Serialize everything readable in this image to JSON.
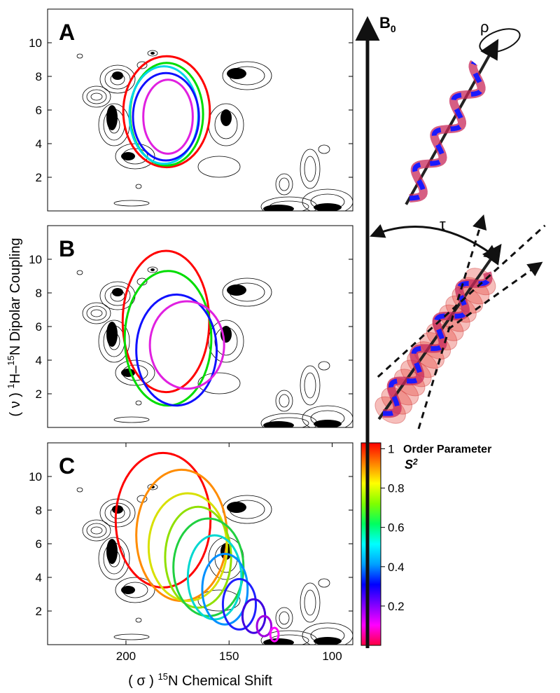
{
  "figure": {
    "xlabel": [
      "( σ ) ",
      "15",
      "N Chemical Shift"
    ],
    "ylabel": [
      "( ν ) ",
      "1",
      "H–",
      "15",
      "N Dipolar Coupling"
    ]
  },
  "chart_data": [
    {
      "type": "pisa",
      "label": "A",
      "xlim": [
        238,
        90
      ],
      "ylim": [
        0,
        12
      ],
      "yticks": [
        2,
        4,
        6,
        8,
        10
      ],
      "wheels": [
        {
          "color": "#ff0000",
          "x": 180.3,
          "y": 5.9,
          "rx": 21,
          "ry": 3.3
        },
        {
          "color": "#00dd00",
          "x": 180.3,
          "y": 5.75,
          "rx": 17.7,
          "ry": 3.05
        },
        {
          "color": "#00d8e8",
          "x": 181.6,
          "y": 5.7,
          "rx": 16.7,
          "ry": 2.9
        },
        {
          "color": "#1010ff",
          "x": 180.6,
          "y": 5.6,
          "rx": 16,
          "ry": 2.6
        },
        {
          "color": "#e020e0",
          "x": 179.6,
          "y": 5.6,
          "rx": 12,
          "ry": 2.2
        }
      ]
    },
    {
      "type": "pisa",
      "label": "B",
      "xlim": [
        238,
        90
      ],
      "ylim": [
        0,
        12
      ],
      "yticks": [
        2,
        4,
        6,
        8,
        10
      ],
      "wheels": [
        {
          "color": "#ff0000",
          "x": 180.6,
          "y": 6.3,
          "rx": 21,
          "ry": 4.2
        },
        {
          "color": "#00dd00",
          "x": 179.6,
          "y": 5.3,
          "rx": 21,
          "ry": 4.0
        },
        {
          "color": "#1010ff",
          "x": 175.5,
          "y": 4.6,
          "rx": 19.5,
          "ry": 3.3
        },
        {
          "color": "#e020e0",
          "x": 170.4,
          "y": 4.9,
          "rx": 18,
          "ry": 2.6
        }
      ]
    },
    {
      "type": "pisa",
      "label": "C",
      "xlim": [
        238,
        90
      ],
      "ylim": [
        0,
        12
      ],
      "yticks": [
        2,
        4,
        6,
        8,
        10
      ],
      "xticks": [
        200,
        150,
        100
      ],
      "wheels": [
        {
          "color": "#ff0000",
          "x": 182,
          "y": 7.4,
          "rx": 23,
          "ry": 4.0
        },
        {
          "color": "#ff8c00",
          "x": 173,
          "y": 6.5,
          "rx": 22,
          "ry": 3.9
        },
        {
          "color": "#d8e000",
          "x": 170,
          "y": 5.8,
          "rx": 19,
          "ry": 3.2
        },
        {
          "color": "#90e000",
          "x": 165,
          "y": 5.2,
          "rx": 16,
          "ry": 3.0
        },
        {
          "color": "#20d040",
          "x": 160,
          "y": 4.6,
          "rx": 17,
          "ry": 2.9
        },
        {
          "color": "#00d8d0",
          "x": 157,
          "y": 4.0,
          "rx": 13,
          "ry": 2.5
        },
        {
          "color": "#0090ff",
          "x": 152,
          "y": 3.3,
          "rx": 11,
          "ry": 2.1
        },
        {
          "color": "#2020ff",
          "x": 145,
          "y": 2.4,
          "rx": 8,
          "ry": 1.5
        },
        {
          "color": "#4000e0",
          "x": 138,
          "y": 1.7,
          "rx": 5.5,
          "ry": 1.0
        },
        {
          "color": "#a000e0",
          "x": 133,
          "y": 1.1,
          "rx": 3.5,
          "ry": 0.6
        },
        {
          "color": "#ff00ff",
          "x": 128,
          "y": 0.6,
          "rx": 2,
          "ry": 0.4
        }
      ]
    }
  ],
  "colorbar": {
    "title": "Order Parameter",
    "symbol": [
      "S",
      "2"
    ],
    "ylim": [
      0,
      1.03
    ],
    "yticks": [
      0.2,
      0.4,
      0.6,
      0.8,
      1
    ],
    "colors": [
      "#ff0040",
      "#ff00ff",
      "#8000ff",
      "#0000ff",
      "#00a0ff",
      "#00ffff",
      "#00ff60",
      "#80ff00",
      "#ffff00",
      "#ff8000",
      "#ff0000"
    ]
  },
  "diagram": {
    "field": [
      "B",
      "0"
    ],
    "rho": "ρ",
    "tau": "τ"
  }
}
